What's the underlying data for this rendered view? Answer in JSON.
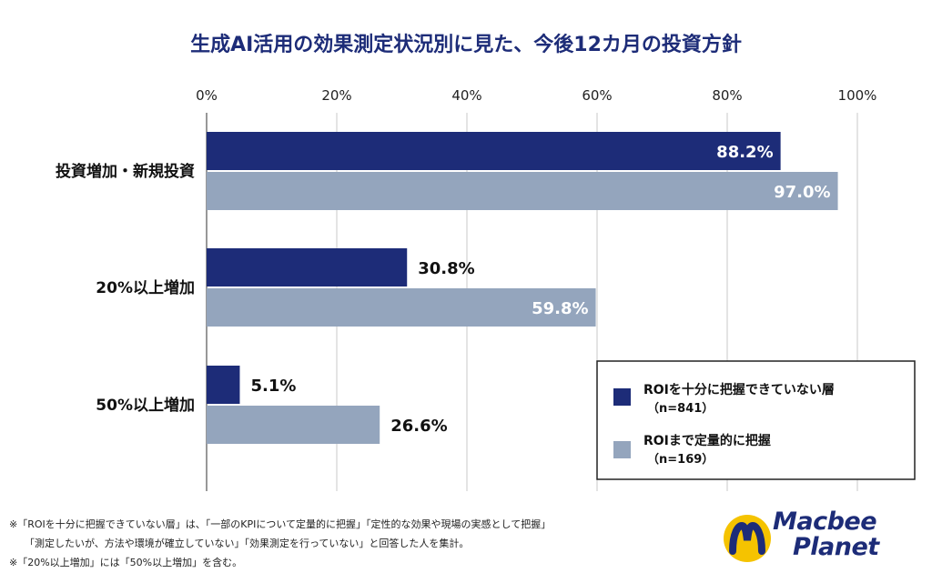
{
  "chart_data": {
    "type": "bar",
    "orientation": "horizontal",
    "title": "生成AI活用の効果測定状況別に見た、今後12カ月の投資方針",
    "categories": [
      "投資増加・新規投資",
      "20%以上増加",
      "50%以上増加"
    ],
    "x_ticks": [
      "0%",
      "20%",
      "40%",
      "60%",
      "80%",
      "100%"
    ],
    "xlim": [
      0,
      100
    ],
    "unit": "%",
    "grid": true,
    "legend_position": "bottom-right",
    "series": [
      {
        "name": "ROIを十分に把握できていない層",
        "n_label": "（n=841）",
        "color": "#1d2c78",
        "values": [
          88.2,
          30.8,
          5.1
        ],
        "labels": [
          "88.2%",
          "30.8%",
          "5.1%"
        ]
      },
      {
        "name": "ROIまで定量的に把握",
        "n_label": "（n=169）",
        "color": "#94a5bd",
        "values": [
          97.0,
          59.8,
          26.6
        ],
        "labels": [
          "97.0%",
          "59.8%",
          "26.6%"
        ]
      }
    ]
  },
  "footnotes": [
    "※「ROIを十分に把握できていない層」は、「一部のKPIについて定量的に把握」「定性的な効果や現場の実感として把握」",
    "「測定したいが、方法や環境が確立していない」「効果測定を行っていない」と回答した人を集計。",
    "※「20%以上増加」には「50%以上増加」を含む。"
  ],
  "logo": {
    "line1": "Macbee",
    "line2": "Planet",
    "colors": {
      "blue": "#1d2c78",
      "yellow": "#f5c300"
    }
  }
}
